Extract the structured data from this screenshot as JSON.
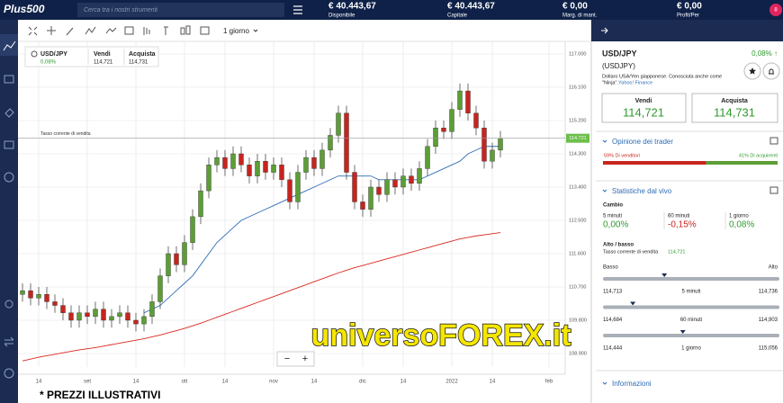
{
  "topbar": {
    "logo": "Plus500",
    "search": "Cerca tra i nostri strumenti",
    "badge": "8",
    "stats": [
      {
        "value": "€ 40.443,67",
        "label": "Disponibile"
      },
      {
        "value": "€ 40.443,67",
        "label": "Capitale"
      },
      {
        "value": "€ 0,00",
        "label": "Marg. di mant."
      },
      {
        "value": "€ 0,00",
        "label": "Profit/Per"
      }
    ]
  },
  "toolbar": {
    "period": "1 giorno"
  },
  "chart_header": {
    "symbol": "USD/JPY",
    "change": "0,08%",
    "sell_label": "Vendi",
    "sell": "114,721",
    "buy_label": "Acquista",
    "buy": "114,731"
  },
  "chart_data": {
    "type": "candlestick",
    "bull_color": "#5c9e35",
    "bear_color": "#c8241e",
    "grid": true,
    "current_price": {
      "value": 114.721,
      "label": "114.721"
    },
    "current_price_label": "Tasso corrente di vendita",
    "current_color": "#6cbf4a",
    "ylim": [
      108.535,
      117.34
    ],
    "yticks": [
      {
        "value": 117.0,
        "label": "117.000"
      },
      {
        "value": 116.1,
        "label": "116.100"
      },
      {
        "value": 115.2,
        "label": "115.200"
      },
      {
        "value": 114.3,
        "label": "114.300"
      },
      {
        "value": 113.4,
        "label": "113.400"
      },
      {
        "value": 112.5,
        "label": "112.500"
      },
      {
        "value": 111.6,
        "label": "111.600"
      },
      {
        "value": 110.7,
        "label": "110.700"
      },
      {
        "value": 109.8,
        "label": "109.800"
      },
      {
        "value": 108.9,
        "label": "108.900"
      }
    ],
    "categories": [
      null,
      null,
      "14",
      null,
      null,
      null,
      null,
      null,
      "set",
      null,
      null,
      null,
      null,
      null,
      "14",
      null,
      null,
      null,
      null,
      null,
      "ott",
      null,
      null,
      null,
      null,
      "14",
      null,
      null,
      null,
      null,
      null,
      "nov",
      null,
      null,
      null,
      null,
      "14",
      null,
      null,
      null,
      null,
      null,
      "dic",
      null,
      null,
      null,
      null,
      "14",
      null,
      null,
      null,
      null,
      null,
      "2022",
      null,
      null,
      null,
      null,
      "14",
      null,
      null,
      null,
      null,
      null,
      null,
      "feb"
    ],
    "open": [
      110.5,
      110.6,
      110.4,
      110.5,
      110.3,
      110.2,
      110.0,
      109.8,
      110.0,
      109.9,
      110.1,
      109.8,
      109.9,
      110.0,
      109.8,
      109.7,
      109.9,
      110.3,
      111.0,
      111.6,
      111.3,
      111.9,
      112.6,
      113.3,
      114.0,
      114.2,
      113.9,
      114.3,
      114.0,
      113.7,
      114.1,
      113.8,
      114.0,
      113.6,
      113.0,
      113.8,
      114.2,
      113.9,
      114.4,
      114.8,
      115.4,
      113.8,
      113.0,
      112.8,
      113.4,
      113.2,
      113.6,
      113.4,
      113.7,
      113.5,
      113.9,
      114.5,
      115.0,
      114.9,
      115.5,
      116.0,
      115.4,
      115.0,
      114.1,
      114.4,
      null,
      null,
      null,
      null,
      null,
      null
    ],
    "high": [
      110.8,
      110.8,
      110.7,
      110.7,
      110.5,
      110.4,
      110.2,
      110.2,
      110.2,
      110.3,
      110.3,
      110.1,
      110.2,
      110.2,
      110.0,
      110.1,
      110.5,
      111.2,
      111.8,
      111.8,
      112.1,
      112.8,
      113.5,
      114.2,
      114.4,
      114.4,
      114.5,
      114.5,
      114.2,
      114.3,
      114.3,
      114.2,
      114.2,
      113.8,
      114.0,
      114.4,
      114.4,
      114.6,
      115.0,
      115.6,
      115.6,
      114.0,
      113.2,
      113.6,
      113.6,
      113.8,
      113.8,
      113.9,
      113.9,
      114.1,
      114.7,
      115.2,
      115.2,
      115.7,
      116.2,
      116.2,
      115.6,
      115.2,
      114.6,
      114.92,
      null,
      null,
      null,
      null,
      null,
      null
    ],
    "low": [
      110.3,
      110.2,
      110.2,
      110.1,
      110.0,
      109.8,
      109.6,
      109.6,
      109.7,
      109.7,
      109.6,
      109.6,
      109.7,
      109.6,
      109.5,
      109.5,
      109.7,
      110.1,
      110.8,
      111.1,
      111.1,
      111.7,
      112.4,
      113.1,
      113.8,
      113.7,
      113.7,
      113.8,
      113.5,
      113.5,
      113.6,
      113.6,
      113.4,
      112.8,
      112.8,
      113.6,
      113.7,
      113.7,
      114.2,
      114.6,
      113.6,
      112.8,
      112.6,
      112.6,
      113.0,
      113.0,
      113.2,
      113.2,
      113.3,
      113.3,
      113.7,
      114.3,
      114.7,
      114.7,
      115.3,
      115.2,
      114.8,
      113.9,
      113.9,
      114.2,
      null,
      null,
      null,
      null,
      null,
      null
    ],
    "close": [
      110.6,
      110.4,
      110.5,
      110.3,
      110.2,
      110.0,
      109.8,
      110.0,
      109.9,
      110.1,
      109.8,
      109.9,
      110.0,
      109.8,
      109.7,
      109.9,
      110.3,
      111.0,
      111.6,
      111.3,
      111.9,
      112.6,
      113.3,
      114.0,
      114.2,
      113.9,
      114.3,
      114.0,
      113.7,
      114.1,
      113.8,
      114.0,
      113.6,
      113.0,
      113.8,
      114.2,
      113.9,
      114.4,
      114.8,
      115.4,
      113.8,
      113.0,
      112.8,
      113.4,
      113.2,
      113.6,
      113.4,
      113.7,
      113.5,
      113.9,
      114.5,
      115.0,
      114.9,
      115.5,
      116.0,
      115.4,
      115.0,
      114.1,
      114.4,
      114.72,
      null,
      null,
      null,
      null,
      null,
      null
    ],
    "moving_averages": [
      {
        "color": "#2f6db5",
        "values": [
          null,
          null,
          null,
          null,
          null,
          null,
          null,
          null,
          null,
          null,
          null,
          null,
          null,
          null,
          null,
          110.0,
          110.1,
          110.2,
          110.4,
          110.6,
          110.8,
          111.0,
          111.3,
          111.6,
          111.9,
          112.1,
          112.3,
          112.5,
          112.6,
          112.7,
          112.8,
          112.9,
          113.0,
          113.1,
          113.2,
          113.3,
          113.4,
          113.5,
          113.6,
          113.7,
          113.7,
          113.7,
          113.7,
          113.7,
          113.6,
          113.6,
          113.6,
          113.6,
          113.6,
          113.6,
          113.7,
          113.8,
          113.9,
          114.0,
          114.1,
          114.3,
          114.4,
          114.5,
          114.5,
          114.5,
          null,
          null,
          null,
          null,
          null,
          null
        ]
      },
      {
        "color": "#d9281f",
        "values": [
          108.7,
          108.75,
          108.8,
          108.84,
          108.88,
          108.92,
          108.96,
          109.0,
          109.03,
          109.06,
          109.1,
          109.14,
          109.18,
          109.22,
          109.26,
          109.3,
          109.35,
          109.4,
          109.46,
          109.52,
          109.58,
          109.65,
          109.72,
          109.8,
          109.88,
          109.96,
          110.04,
          110.12,
          110.2,
          110.28,
          110.36,
          110.44,
          110.52,
          110.6,
          110.68,
          110.76,
          110.84,
          110.92,
          111.0,
          111.08,
          111.15,
          111.22,
          111.28,
          111.34,
          111.4,
          111.46,
          111.52,
          111.58,
          111.64,
          111.7,
          111.76,
          111.82,
          111.88,
          111.94,
          112.0,
          112.04,
          112.08,
          112.11,
          112.14,
          112.17,
          null,
          null,
          null,
          null,
          null,
          null
        ]
      }
    ],
    "zoom_out": "−",
    "zoom_in": "+"
  },
  "watermark": "universoFOREX.it",
  "footer": "* PREZZI ILLUSTRATIVI",
  "panel": {
    "symbol": "USD/JPY",
    "change": "0,08% ↑",
    "code": "(USDJPY)",
    "description": "Dollaro USA/Yen giapponese. Conosciuta anche come",
    "description2": "\"Ninja\".",
    "source": "Yahoo! Finance",
    "sell_label": "Vendi",
    "sell": "114,721",
    "buy_label": "Acquista",
    "buy": "114,731",
    "opinion": {
      "title": "Opinione dei trader",
      "sellers": {
        "value": 59,
        "label": "59% Di venditori"
      },
      "buyers": {
        "value": 41,
        "label": "41% Di acquirenti"
      }
    },
    "live": {
      "title": "Statistiche dal vivo",
      "change_title": "Cambio",
      "changes": [
        {
          "period": "5 minuti",
          "value": "0,00%"
        },
        {
          "period": "60 minuti",
          "value": "-0,15%"
        },
        {
          "period": "1 giorno",
          "value": "0,08%"
        }
      ],
      "hl_title": "Alto / basso",
      "current_label": "Tasso corrente di vendita",
      "current": {
        "value": 114.721,
        "label": "114,721"
      },
      "low_label": "Basso",
      "high_label": "Alto",
      "ranges": [
        {
          "period": "5 minuti",
          "low": {
            "value": 114.713,
            "label": "114,713"
          },
          "high": {
            "value": 114.736,
            "label": "114,736"
          }
        },
        {
          "period": "60 minuti",
          "low": {
            "value": 114.684,
            "label": "114,684"
          },
          "high": {
            "value": 114.903,
            "label": "114,903"
          }
        },
        {
          "period": "1 giorno",
          "low": {
            "value": 114.444,
            "label": "114,444"
          },
          "high": {
            "value": 115.056,
            "label": "115,056"
          }
        }
      ]
    },
    "info": "Informazioni"
  }
}
